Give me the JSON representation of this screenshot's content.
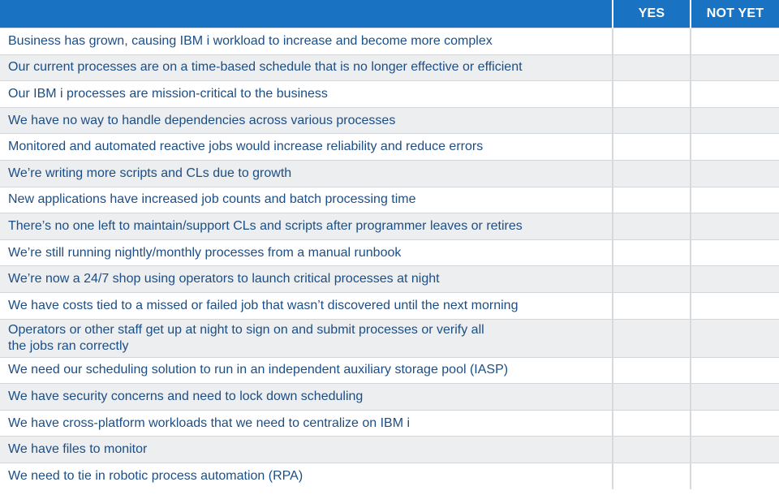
{
  "header": {
    "statement": "",
    "yes": "YES",
    "not_yet": "NOT YET"
  },
  "rows": [
    "Business has grown, causing IBM i workload to increase and become more complex",
    "Our current processes are on a time-based schedule that is no longer effective or efficient",
    "Our IBM i processes are mission-critical to the business",
    "We have no way to handle dependencies across various processes",
    "Monitored and automated reactive jobs would increase reliability and reduce errors",
    "We’re writing more scripts and CLs due to growth",
    "New applications have increased job counts and batch processing time",
    "There’s no one left to maintain/support CLs and scripts after programmer leaves or retires",
    "We’re still running nightly/monthly processes from a manual runbook",
    "We’re now a 24/7 shop using operators to launch critical processes at night",
    "We have costs tied to a missed or failed job that wasn’t discovered until the next morning",
    "Operators or other staff get up at night to sign on and submit processes or verify all\nthe jobs ran correctly",
    "We need our scheduling solution to run in an independent auxiliary storage pool (IASP)",
    "We have security concerns and need to lock down scheduling",
    "We have cross-platform workloads that we need to centralize on IBM i",
    "We have files to monitor",
    "We need to tie in robotic process automation (RPA)"
  ],
  "colors": {
    "header": "#1a73c2",
    "text": "#1c4e86",
    "row_alt": "#eceeef"
  }
}
